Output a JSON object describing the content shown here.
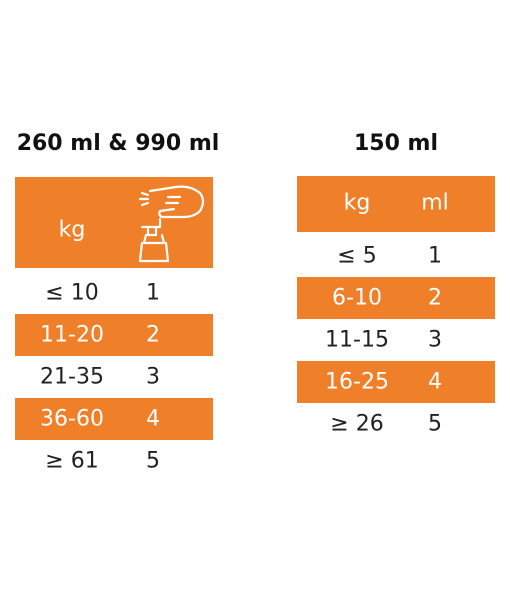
{
  "left_table": {
    "title": "260 ml & 990 ml",
    "header": [
      "kg"
    ],
    "rows": [
      [
        "≤ 10",
        "1"
      ],
      [
        "11-20",
        "2"
      ],
      [
        "21-35",
        "3"
      ],
      [
        "36-60",
        "4"
      ],
      [
        "≥ 61",
        "5"
      ]
    ]
  },
  "right_table": {
    "title": "150 ml",
    "header": [
      "kg",
      "ml"
    ],
    "rows": [
      [
        "≤ 5",
        "1"
      ],
      [
        "6-10",
        "2"
      ],
      [
        "11-15",
        "3"
      ],
      [
        "16-25",
        "4"
      ],
      [
        "≥ 26",
        "5"
      ]
    ]
  }
}
